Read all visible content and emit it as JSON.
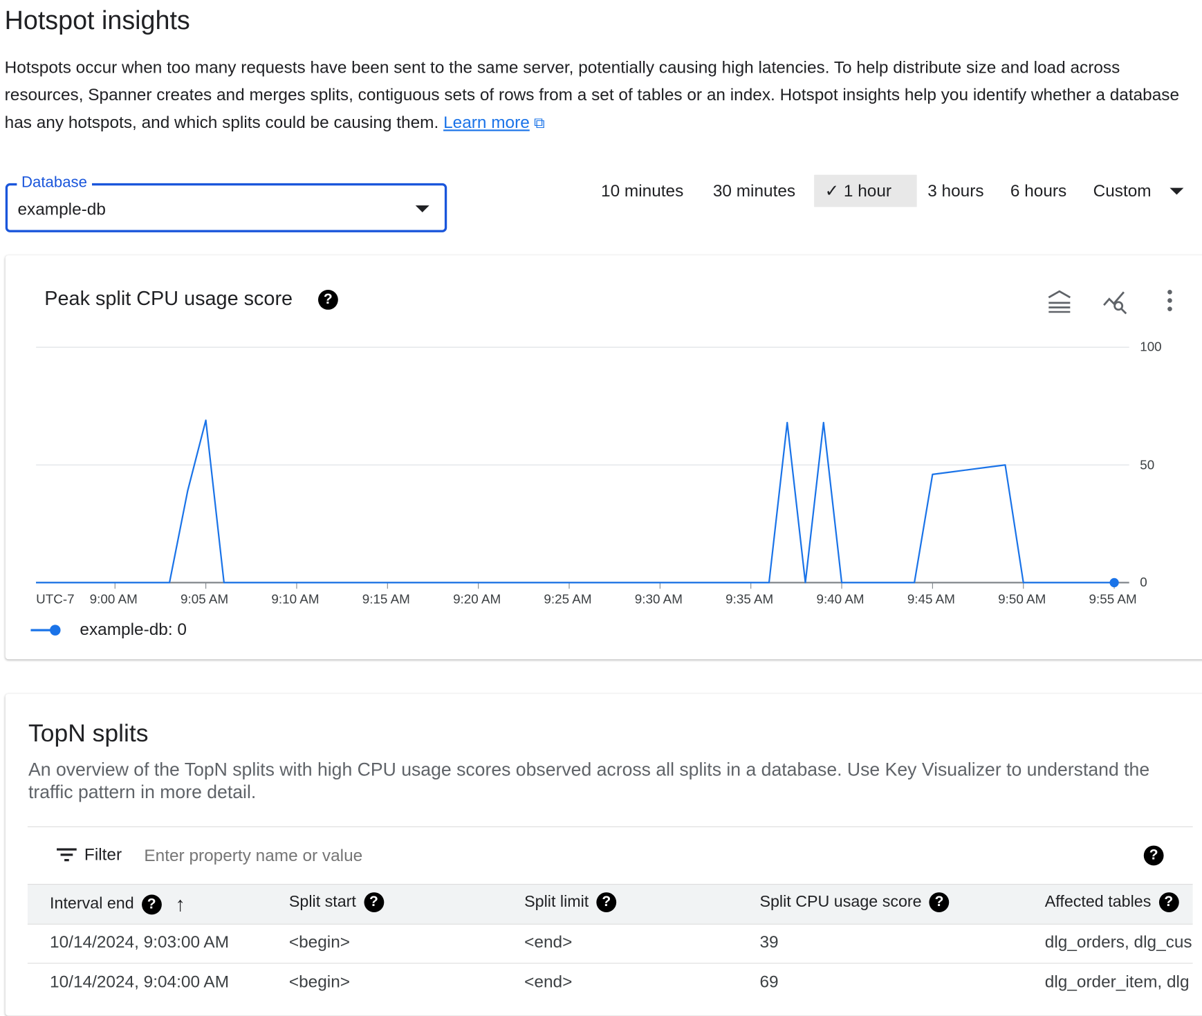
{
  "page": {
    "title": "Hotspot insights",
    "description": "Hotspots occur when too many requests have been sent to the same server, potentially causing high latencies. To help distribute size and load across resources, Spanner creates and merges splits, contiguous sets of rows from a set of tables or an index. Hotspot insights help you identify whether a database has any hotspots, and which splits could be causing them.",
    "learn_more": "Learn more"
  },
  "database": {
    "label": "Database",
    "value": "example-db"
  },
  "time_ranges": [
    {
      "label": "10 minutes",
      "selected": false
    },
    {
      "label": "30 minutes",
      "selected": false
    },
    {
      "label": "1 hour",
      "selected": true
    },
    {
      "label": "3 hours",
      "selected": false
    },
    {
      "label": "6 hours",
      "selected": false
    },
    {
      "label": "Custom",
      "selected": false
    }
  ],
  "colors": {
    "accent": "#1a73e8",
    "series": "#1a73e8"
  },
  "chart_data": {
    "type": "line",
    "title": "Peak split CPU usage score",
    "timezone": "UTC-7",
    "x_ticks": [
      "9:00 AM",
      "9:05 AM",
      "9:10 AM",
      "9:15 AM",
      "9:20 AM",
      "9:25 AM",
      "9:30 AM",
      "9:35 AM",
      "9:40 AM",
      "9:45 AM",
      "9:50 AM",
      "9:55 AM"
    ],
    "y_ticks": [
      0,
      50,
      100
    ],
    "ylim": [
      0,
      100
    ],
    "grid": true,
    "legend": "bottom-left",
    "series": [
      {
        "name": "example-db",
        "current_value": "0",
        "points": [
          [
            "8:56",
            0
          ],
          [
            "9:03",
            0
          ],
          [
            "9:04",
            39
          ],
          [
            "9:05",
            69
          ],
          [
            "9:06",
            0
          ],
          [
            "9:36",
            0
          ],
          [
            "9:37",
            68
          ],
          [
            "9:38",
            0
          ],
          [
            "9:39",
            68
          ],
          [
            "9:40",
            0
          ],
          [
            "9:44",
            0
          ],
          [
            "9:45",
            46
          ],
          [
            "9:46",
            47
          ],
          [
            "9:47",
            48
          ],
          [
            "9:48",
            49
          ],
          [
            "9:49",
            50
          ],
          [
            "9:50",
            0
          ],
          [
            "9:55",
            0
          ]
        ]
      }
    ]
  },
  "topn": {
    "title": "TopN splits",
    "description": "An overview of the TopN splits with high CPU usage scores observed across all splits in a database. Use Key Visualizer to understand the traffic pattern in more detail.",
    "filter_label": "Filter",
    "filter_placeholder": "Enter property name or value",
    "columns": [
      "Interval end",
      "Split start",
      "Split limit",
      "Split CPU usage score",
      "Affected tables"
    ],
    "rows": [
      [
        "10/14/2024, 9:03:00 AM",
        "<begin>",
        "<end>",
        "39",
        "dlg_orders, dlg_cus"
      ],
      [
        "10/14/2024, 9:04:00 AM",
        "<begin>",
        "<end>",
        "69",
        "dlg_order_item, dlg"
      ]
    ]
  }
}
